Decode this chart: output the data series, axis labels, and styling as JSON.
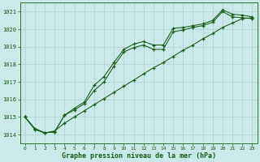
{
  "title": "Graphe pression niveau de la mer (hPa)",
  "bg_color": "#cce8e8",
  "grid_color": "#b0d0d0",
  "line_color": "#1a5c1a",
  "spine_color": "#2d7a2d",
  "xlim": [
    -0.5,
    23.5
  ],
  "ylim": [
    1013.5,
    1021.5
  ],
  "yticks": [
    1014,
    1015,
    1016,
    1017,
    1018,
    1019,
    1020,
    1021
  ],
  "xticks": [
    0,
    1,
    2,
    3,
    4,
    5,
    6,
    7,
    8,
    9,
    10,
    11,
    12,
    13,
    14,
    15,
    16,
    17,
    18,
    19,
    20,
    21,
    22,
    23
  ],
  "line1": [
    1015.0,
    1014.3,
    1014.1,
    1014.15,
    1015.1,
    1015.5,
    1015.85,
    1016.8,
    1017.3,
    1018.1,
    1018.85,
    1019.15,
    1019.3,
    1019.1,
    1019.1,
    1020.05,
    1020.1,
    1020.2,
    1020.3,
    1020.5,
    1021.1,
    1020.85,
    1020.8,
    1020.7
  ],
  "line2": [
    1015.0,
    1014.3,
    1014.1,
    1014.15,
    1015.1,
    1015.4,
    1015.75,
    1016.5,
    1017.0,
    1017.9,
    1018.7,
    1018.95,
    1019.1,
    1018.85,
    1018.85,
    1019.85,
    1019.95,
    1020.1,
    1020.2,
    1020.4,
    1021.0,
    1020.7,
    1020.65,
    1020.6
  ],
  "line3": [
    1015.0,
    1014.35,
    1014.1,
    1014.2,
    1014.65,
    1015.0,
    1015.35,
    1015.7,
    1016.05,
    1016.4,
    1016.75,
    1017.1,
    1017.45,
    1017.8,
    1018.1,
    1018.45,
    1018.8,
    1019.1,
    1019.45,
    1019.75,
    1020.1,
    1020.35,
    1020.6,
    1020.65
  ]
}
